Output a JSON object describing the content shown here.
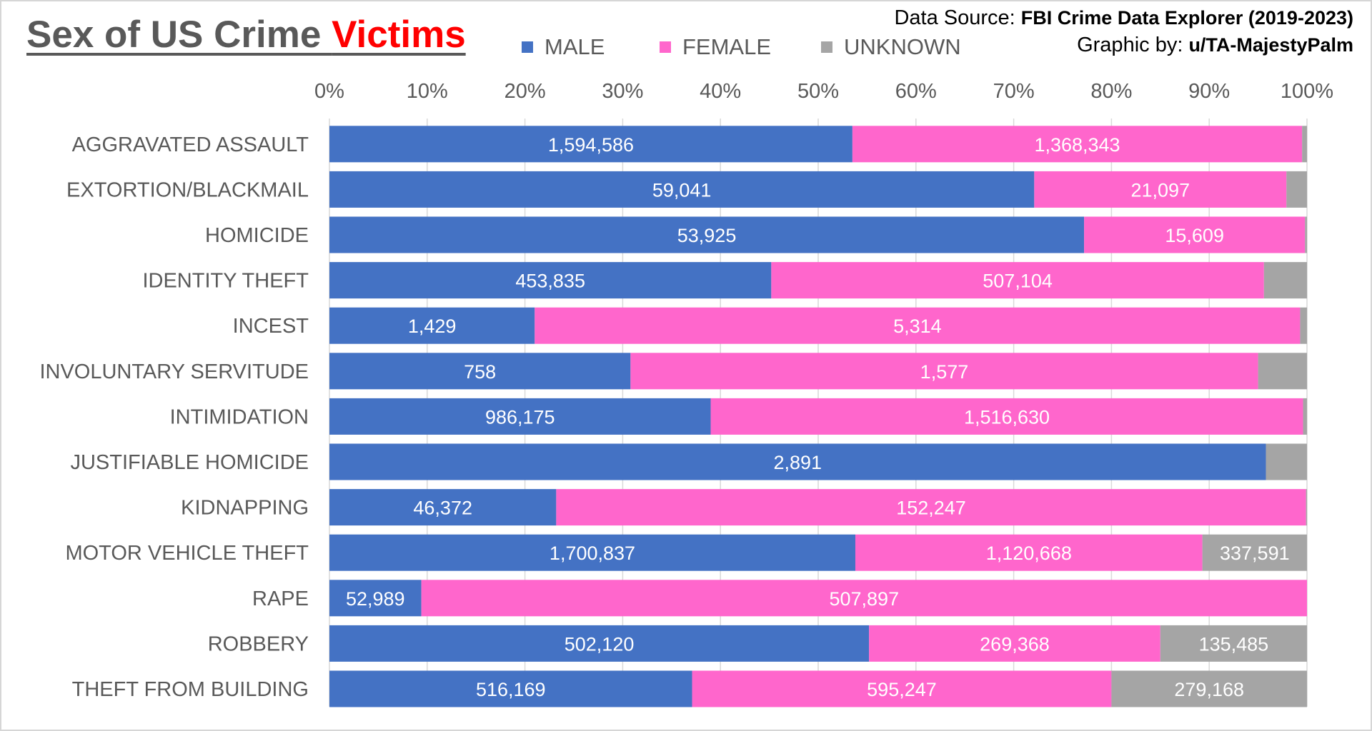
{
  "title": {
    "prefix": "Sex of US Crime ",
    "highlight": "Victims",
    "highlight_color": "#ff0000"
  },
  "source": {
    "data_label": "Data Source: ",
    "data_value": "FBI Crime Data Explorer (2019-2023)",
    "graphic_label": "Graphic by: ",
    "graphic_value": "u/TA-MajestyPalm"
  },
  "legend": [
    {
      "label": "MALE",
      "color": "#4472c4",
      "icon": "square-icon"
    },
    {
      "label": "FEMALE",
      "color": "#ff66cc",
      "icon": "square-icon"
    },
    {
      "label": "UNKNOWN",
      "color": "#a5a5a5",
      "icon": "square-icon"
    }
  ],
  "chart_data": {
    "type": "bar",
    "orientation": "horizontal",
    "stacking": "percent",
    "title": "Sex of US Crime Victims",
    "xlim": [
      0,
      100
    ],
    "xticks": [
      "0%",
      "10%",
      "20%",
      "30%",
      "40%",
      "50%",
      "60%",
      "70%",
      "80%",
      "90%",
      "100%"
    ],
    "xaxis_position": "top",
    "grid": true,
    "legend_position": "top",
    "categories": [
      "AGGRAVATED ASSAULT",
      "EXTORTION/BLACKMAIL",
      "HOMICIDE",
      "IDENTITY THEFT",
      "INCEST",
      "INVOLUNTARY SERVITUDE",
      "INTIMIDATION",
      "JUSTIFIABLE HOMICIDE",
      "KIDNAPPING",
      "MOTOR VEHICLE THEFT",
      "RAPE",
      "ROBBERY",
      "THEFT FROM BUILDING"
    ],
    "series": [
      {
        "name": "MALE",
        "color": "#4472c4",
        "values": [
          1594586,
          59041,
          53925,
          453835,
          1429,
          758,
          986175,
          2891,
          46372,
          1700837,
          52989,
          502120,
          516169
        ],
        "labels": [
          "1,594,586",
          "59,041",
          "53,925",
          "453,835",
          "1,429",
          "758",
          "986,175",
          "2,891",
          "46,372",
          "1,700,837",
          "52,989",
          "502,120",
          "516,169"
        ],
        "percent": [
          53.5,
          72.1,
          77.2,
          45.2,
          21.0,
          30.8,
          39.0,
          95.8,
          23.2,
          53.8,
          9.4,
          55.2,
          37.1
        ]
      },
      {
        "name": "FEMALE",
        "color": "#ff66cc",
        "values": [
          1368343,
          21097,
          15609,
          507104,
          5314,
          1577,
          1516630,
          null,
          152247,
          1120668,
          507897,
          269368,
          595247
        ],
        "labels": [
          "1,368,343",
          "21,097",
          "15,609",
          "507,104",
          "5,314",
          "1,577",
          "1,516,630",
          "",
          "152,247",
          "1,120,668",
          "507,897",
          "269,368",
          "595,247"
        ],
        "percent": [
          46.0,
          25.8,
          22.6,
          50.4,
          78.3,
          64.2,
          60.6,
          0.0,
          76.7,
          35.5,
          90.6,
          29.8,
          42.9
        ]
      },
      {
        "name": "UNKNOWN",
        "color": "#a5a5a5",
        "values": [
          null,
          null,
          null,
          null,
          null,
          null,
          null,
          null,
          null,
          337591,
          null,
          135485,
          279168
        ],
        "labels": [
          "",
          "",
          "",
          "",
          "",
          "",
          "",
          "",
          "",
          "337,591",
          "",
          "135,485",
          "279,168"
        ],
        "percent": [
          0.5,
          2.1,
          0.2,
          4.4,
          0.7,
          5.0,
          0.4,
          4.2,
          0.1,
          10.7,
          0.0,
          15.0,
          20.0
        ]
      }
    ]
  }
}
